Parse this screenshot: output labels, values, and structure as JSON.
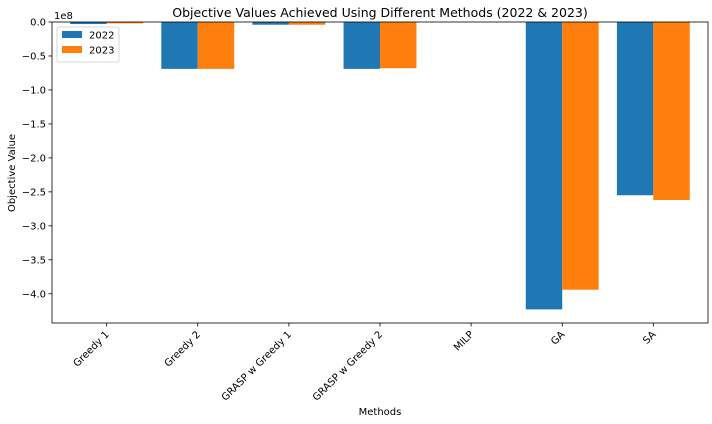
{
  "chart_data": {
    "type": "bar",
    "title": "Objective Values Achieved Using Different Methods (2022 & 2023)",
    "xlabel": "Methods",
    "ylabel": "Objective Value",
    "y_offset_label": "1e8",
    "categories": [
      "Greedy 1",
      "Greedy 2",
      "GRASP w Greedy 1",
      "GRASP w Greedy 2",
      "MILP",
      "GA",
      "SA"
    ],
    "series": [
      {
        "name": "2022",
        "color": "#1f77b4",
        "values": [
          -0.03,
          -0.69,
          -0.04,
          -0.69,
          0.0,
          -4.23,
          -2.55
        ]
      },
      {
        "name": "2023",
        "color": "#ff7f0e",
        "values": [
          -0.02,
          -0.69,
          -0.04,
          -0.68,
          0.0,
          -3.94,
          -2.62
        ]
      }
    ],
    "ylim": [
      -4.43,
      0.0
    ],
    "yticks": [
      0.0,
      -0.5,
      -1.0,
      -1.5,
      -2.0,
      -2.5,
      -3.0,
      -3.5,
      -4.0
    ],
    "ytick_labels": [
      "0.0",
      "−0.5",
      "−1.0",
      "−1.5",
      "−2.0",
      "−2.5",
      "−3.0",
      "−3.5",
      "−4.0"
    ],
    "legend_placement": "top-left",
    "grid": false
  }
}
